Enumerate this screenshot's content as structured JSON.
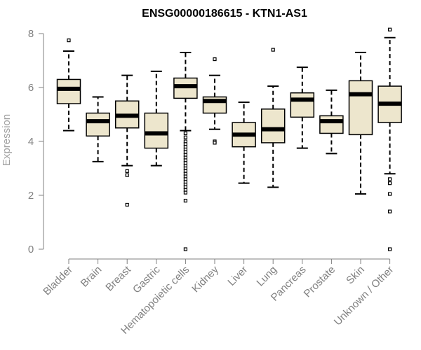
{
  "chart_data": {
    "type": "boxplot",
    "title": "ENSG00000186615 - KTN1-AS1",
    "xlabel": "",
    "ylabel": "Expression",
    "ylim": [
      0,
      8
    ],
    "y_ticks": [
      0,
      2,
      4,
      6,
      8
    ],
    "grid": false,
    "box_fill": "#ede6cd",
    "categories": [
      "Bladder",
      "Brain",
      "Breast",
      "Gastric",
      "Hematopoietic cells",
      "Kidney",
      "Liver",
      "Lung",
      "Pancreas",
      "Prostate",
      "Skin",
      "Unknown / Other"
    ],
    "boxes": [
      {
        "min": 4.4,
        "q1": 5.4,
        "median": 5.95,
        "q3": 6.3,
        "max": 7.35,
        "outliers": [
          7.75
        ]
      },
      {
        "min": 3.25,
        "q1": 4.2,
        "median": 4.75,
        "q3": 5.05,
        "max": 5.65,
        "outliers": []
      },
      {
        "min": 3.1,
        "q1": 4.5,
        "median": 4.95,
        "q3": 5.5,
        "max": 6.45,
        "outliers": [
          2.9,
          2.75,
          1.65
        ]
      },
      {
        "min": 3.1,
        "q1": 3.75,
        "median": 4.3,
        "q3": 5.05,
        "max": 6.6,
        "outliers": []
      },
      {
        "min": 4.4,
        "q1": 5.6,
        "median": 6.05,
        "q3": 6.35,
        "max": 7.3,
        "outliers": [
          4.3,
          4.15,
          4.0,
          3.9,
          3.8,
          3.7,
          3.6,
          3.5,
          3.4,
          3.3,
          3.2,
          3.1,
          3.0,
          2.9,
          2.8,
          2.7,
          2.6,
          2.5,
          2.4,
          2.3,
          2.2,
          2.1,
          1.8,
          0.0
        ]
      },
      {
        "min": 4.45,
        "q1": 5.05,
        "median": 5.5,
        "q3": 5.65,
        "max": 6.45,
        "outliers": [
          7.05,
          4.0,
          3.95
        ]
      },
      {
        "min": 2.45,
        "q1": 3.8,
        "median": 4.25,
        "q3": 4.7,
        "max": 5.45,
        "outliers": []
      },
      {
        "min": 2.3,
        "q1": 3.95,
        "median": 4.45,
        "q3": 5.2,
        "max": 6.05,
        "outliers": [
          7.4
        ]
      },
      {
        "min": 3.75,
        "q1": 4.9,
        "median": 5.55,
        "q3": 5.8,
        "max": 6.75,
        "outliers": []
      },
      {
        "min": 3.55,
        "q1": 4.3,
        "median": 4.75,
        "q3": 4.95,
        "max": 5.9,
        "outliers": []
      },
      {
        "min": 2.05,
        "q1": 4.25,
        "median": 5.75,
        "q3": 6.25,
        "max": 7.3,
        "outliers": []
      },
      {
        "min": 2.8,
        "q1": 4.7,
        "median": 5.4,
        "q3": 6.05,
        "max": 7.85,
        "outliers": [
          8.15,
          2.6,
          2.45,
          2.05,
          1.4,
          0.0
        ]
      }
    ]
  }
}
